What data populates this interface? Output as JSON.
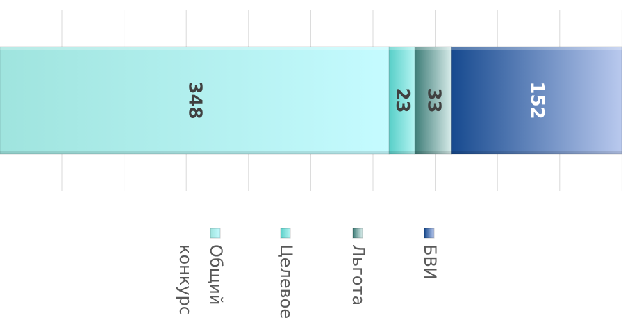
{
  "chart_data": {
    "type": "bar",
    "stacked": true,
    "orientation": "horizontal",
    "categories": [
      ""
    ],
    "series": [
      {
        "name": "Общий конкурс",
        "values": [
          348
        ],
        "color": "#a6ece6"
      },
      {
        "name": "Целевое",
        "values": [
          23
        ],
        "color": "#5fd2cd"
      },
      {
        "name": "Льгота",
        "values": [
          33
        ],
        "color": "#4f8e88"
      },
      {
        "name": "БВИ",
        "values": [
          152
        ],
        "color": "#1f4f96"
      }
    ],
    "data_labels": [
      "348",
      "23",
      "33",
      "152"
    ],
    "legend_labels": [
      [
        "Общий",
        "конкурс"
      ],
      [
        "Целевое"
      ],
      [
        "Льгота"
      ],
      [
        "БВИ"
      ]
    ],
    "xlim": [
      0,
      556
    ],
    "grid": true,
    "legend_position": "bottom"
  }
}
